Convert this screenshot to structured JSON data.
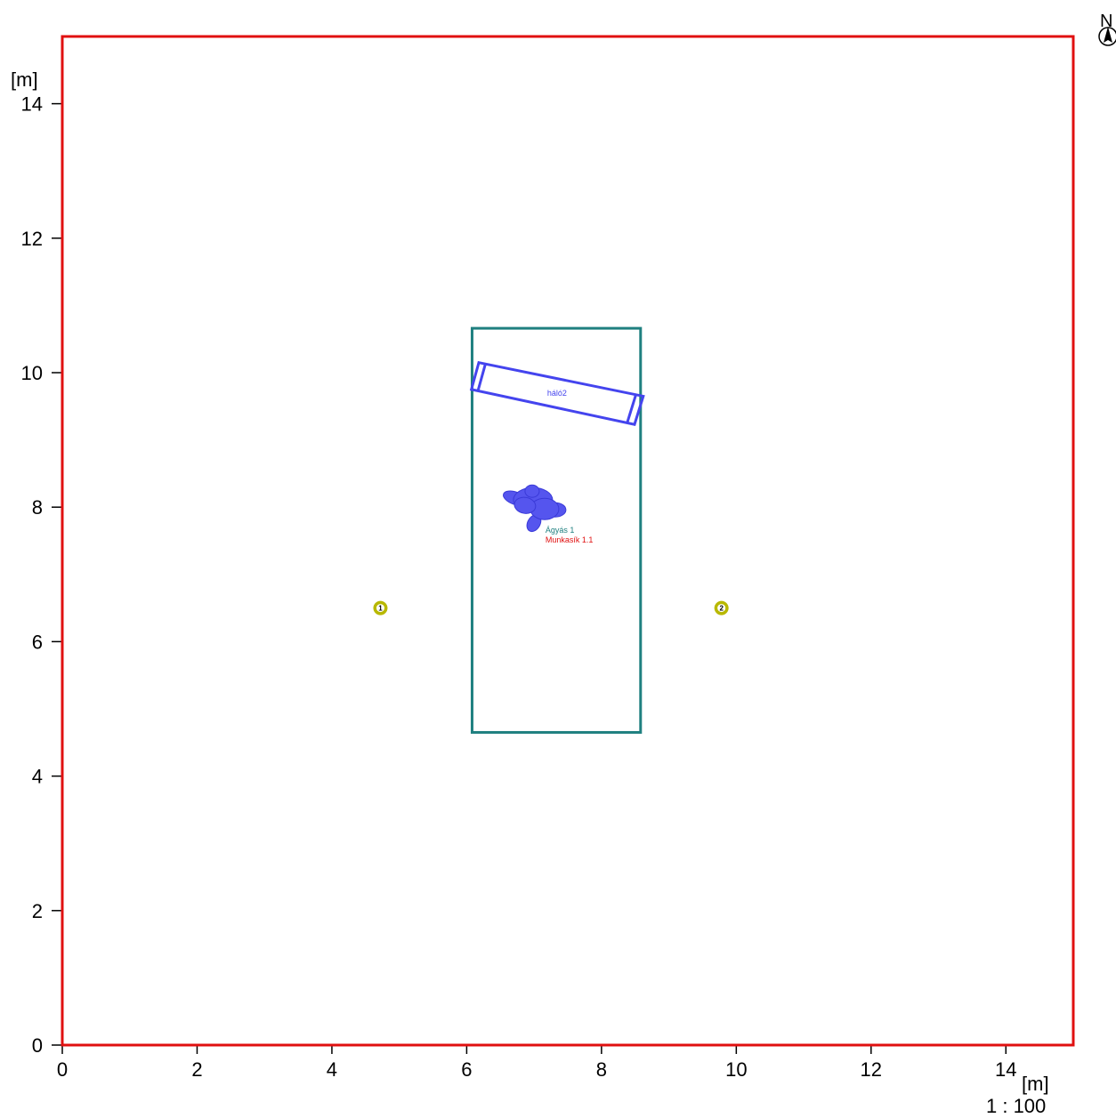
{
  "plan": {
    "x_unit": "[m]",
    "y_unit": "[m]",
    "scale": "1 : 100",
    "north": "N",
    "x_range": [
      0,
      15
    ],
    "y_range": [
      0,
      15
    ],
    "x_ticks": [
      0,
      2,
      4,
      6,
      8,
      10,
      12,
      14
    ],
    "y_ticks": [
      0,
      2,
      4,
      6,
      8,
      10,
      12,
      14
    ],
    "boundary": {
      "x": [
        0,
        15
      ],
      "y": [
        0,
        15
      ],
      "color": "#e01010"
    },
    "zone": {
      "x": [
        6.08,
        8.58
      ],
      "y": [
        4.65,
        10.66
      ],
      "color": "#1f8080"
    },
    "net": {
      "label": "háló2",
      "color": "#4444ee",
      "corners": [
        [
          6.18,
          10.15
        ],
        [
          8.62,
          9.65
        ],
        [
          8.49,
          9.23
        ],
        [
          6.07,
          9.75
        ]
      ]
    },
    "shrub": {
      "center": [
        7.05,
        8.0
      ],
      "color": "#5555ee"
    },
    "labels": {
      "bed": "Ágyás 1",
      "bed_color": "#1f8080",
      "worklayer": "Munkasík 1.1",
      "worklayer_color": "#e01010"
    },
    "markers": [
      {
        "id": "1",
        "x": 4.72,
        "y": 6.5
      },
      {
        "id": "2",
        "x": 9.78,
        "y": 6.5
      }
    ],
    "marker_color": "#b8b800"
  }
}
